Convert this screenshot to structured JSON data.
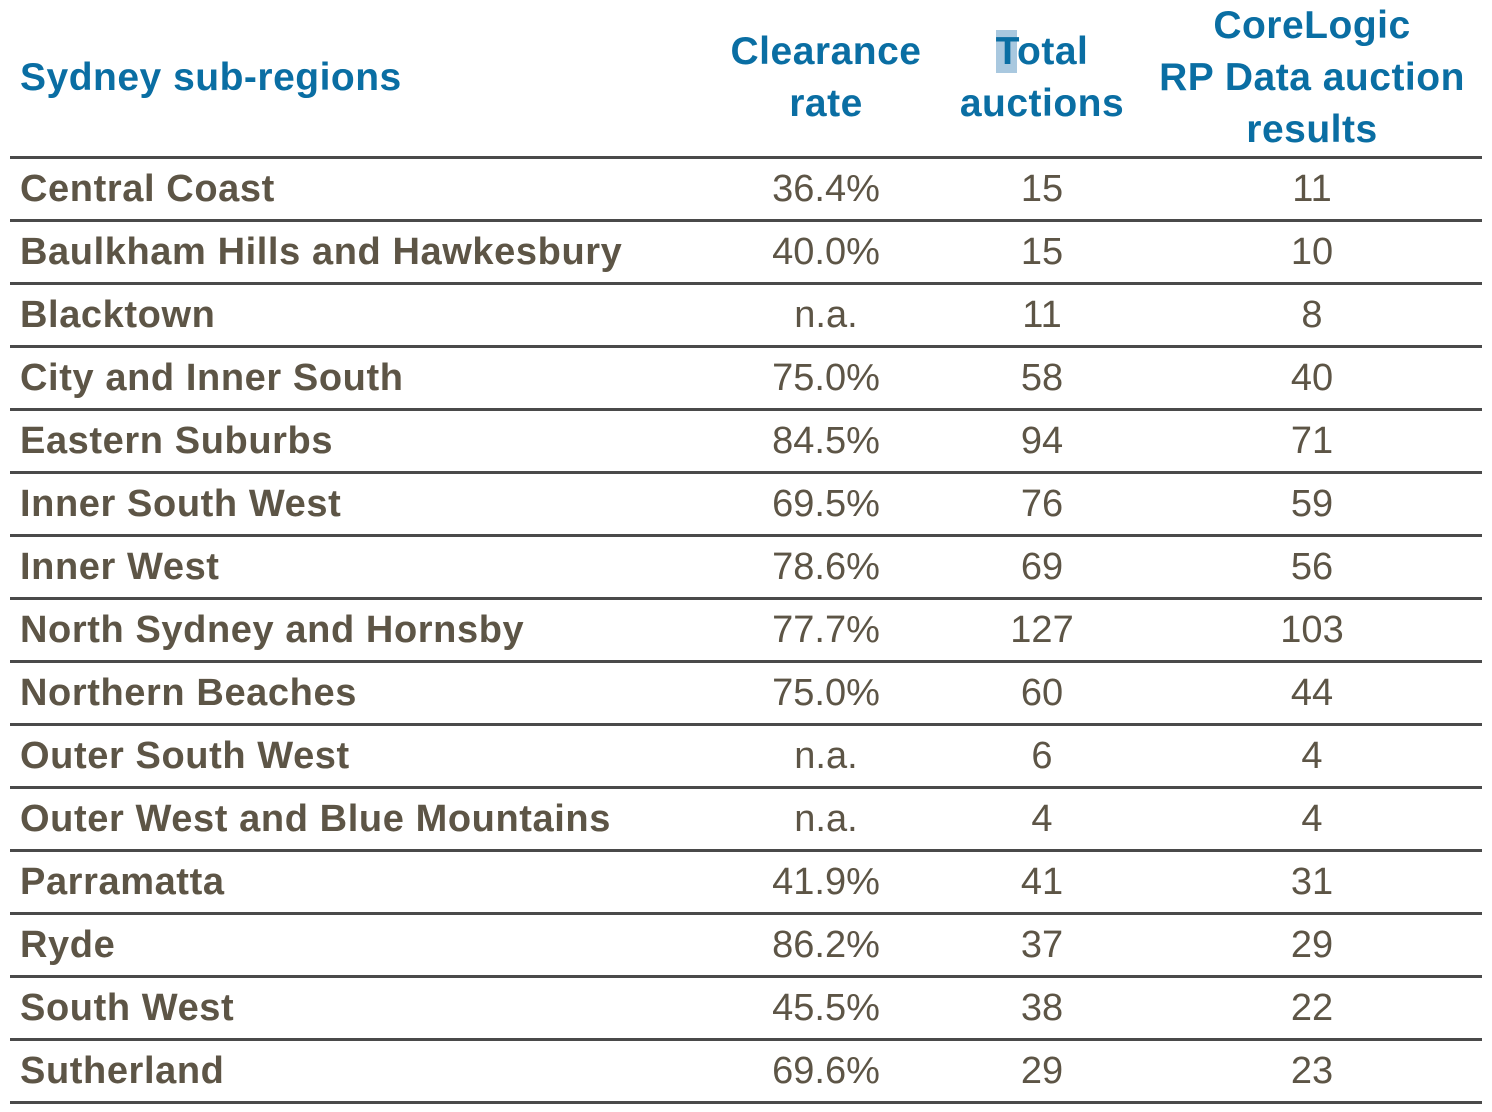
{
  "table": {
    "headers": {
      "region": "Sydney sub-regions",
      "clearance_rate_line1": "Clearance",
      "clearance_rate_line2": "rate",
      "total_auctions_first_letter": "T",
      "total_auctions_line1_rest": "otal",
      "total_auctions_line2": "auctions",
      "corelogic_line1": "CoreLogic",
      "corelogic_line2": "RP Data auction",
      "corelogic_line3": "results"
    },
    "rows": [
      {
        "region": "Central Coast",
        "clearance_rate": "36.4%",
        "total_auctions": "15",
        "corelogic_results": "11"
      },
      {
        "region": "Baulkham Hills and Hawkesbury",
        "clearance_rate": "40.0%",
        "total_auctions": "15",
        "corelogic_results": "10"
      },
      {
        "region": "Blacktown",
        "clearance_rate": "n.a.",
        "total_auctions": "11",
        "corelogic_results": "8"
      },
      {
        "region": "City and Inner South",
        "clearance_rate": "75.0%",
        "total_auctions": "58",
        "corelogic_results": "40"
      },
      {
        "region": "Eastern Suburbs",
        "clearance_rate": "84.5%",
        "total_auctions": "94",
        "corelogic_results": "71"
      },
      {
        "region": "Inner South West",
        "clearance_rate": "69.5%",
        "total_auctions": "76",
        "corelogic_results": "59"
      },
      {
        "region": "Inner West",
        "clearance_rate": "78.6%",
        "total_auctions": "69",
        "corelogic_results": "56"
      },
      {
        "region": "North Sydney and Hornsby",
        "clearance_rate": "77.7%",
        "total_auctions": "127",
        "corelogic_results": "103"
      },
      {
        "region": "Northern Beaches",
        "clearance_rate": "75.0%",
        "total_auctions": "60",
        "corelogic_results": "44"
      },
      {
        "region": "Outer South West",
        "clearance_rate": "n.a.",
        "total_auctions": "6",
        "corelogic_results": "4"
      },
      {
        "region": "Outer West and Blue Mountains",
        "clearance_rate": "n.a.",
        "total_auctions": "4",
        "corelogic_results": "4"
      },
      {
        "region": "Parramatta",
        "clearance_rate": "41.9%",
        "total_auctions": "41",
        "corelogic_results": "31"
      },
      {
        "region": "Ryde",
        "clearance_rate": "86.2%",
        "total_auctions": "37",
        "corelogic_results": "29"
      },
      {
        "region": "South West",
        "clearance_rate": "45.5%",
        "total_auctions": "38",
        "corelogic_results": "22"
      },
      {
        "region": "Sutherland",
        "clearance_rate": "69.6%",
        "total_auctions": "29",
        "corelogic_results": "23"
      }
    ]
  },
  "colors": {
    "header_text": "#0a6ea3",
    "body_text": "#5d5546",
    "rule": "#4a4a4a",
    "text_highlight": "#a9c8df"
  }
}
